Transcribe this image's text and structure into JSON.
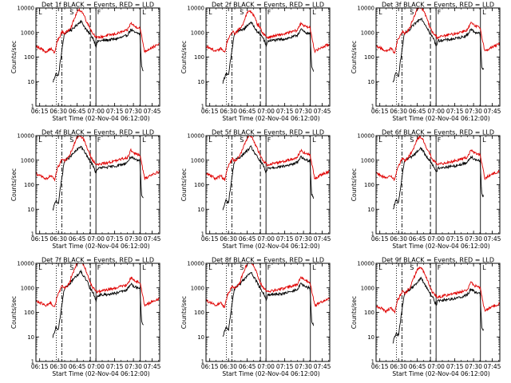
{
  "figure": {
    "panel_titles": [
      "Det 1f BLACK = Events, RED = LLD",
      "Det 2f BLACK = Events, RED = LLD",
      "Det 3f BLACK = Events, RED = LLD",
      "Det 4f BLACK = Events, RED = LLD",
      "Det 5f BLACK = Events, RED = LLD",
      "Det 6f BLACK = Events, RED = LLD",
      "Det 7f BLACK = Events, RED = LLD",
      "Det 8f BLACK = Events, RED = LLD",
      "Det 9f BLACK = Events, RED = LLD"
    ],
    "xlabel": "Start Time (02-Nov-04 06:12:00)",
    "ylabel": "Counts/sec",
    "x_ticks": [
      "06:15",
      "06:30",
      "06:45",
      "07:00",
      "07:15",
      "07:30",
      "07:45"
    ],
    "y_ticks": [
      "1",
      "10",
      "100",
      "1000",
      "10000"
    ],
    "markers": [
      "L",
      "S",
      "F",
      "L"
    ],
    "colors": {
      "events": "#000000",
      "lld": "#e00000"
    }
  },
  "chart_data": {
    "type": "line",
    "layout": "3x3 grid of log-scale time series",
    "x_unit": "minutes since 06:12:00",
    "xlim": [
      0,
      99
    ],
    "ylim": [
      1,
      10000
    ],
    "y_scale": "log",
    "x_tick_values": [
      3,
      18,
      33,
      48,
      63,
      78,
      93
    ],
    "vertical_lines": [
      {
        "x": 16.3,
        "style": "dotted"
      },
      {
        "x": 20.7,
        "style": "dash-dot"
      },
      {
        "x": 43.5,
        "style": "dashed"
      },
      {
        "x": 48.0,
        "style": "solid"
      },
      {
        "x": 83.5,
        "style": "solid"
      }
    ],
    "marker_positions": [
      {
        "label": "L",
        "x": 2
      },
      {
        "label": "S",
        "x": 27
      },
      {
        "label": "F",
        "x": 49
      },
      {
        "label": "L",
        "x": 85
      }
    ],
    "series": [
      {
        "name": "BLACK = Events",
        "x": [
          13.5,
          16,
          18,
          19.5,
          21,
          22.5,
          24,
          28,
          36,
          40,
          43,
          46,
          48,
          49.5,
          52,
          58,
          64,
          68,
          70,
          73,
          76,
          79,
          81,
          83.2,
          84.5,
          86
        ],
        "y": [
          8,
          20,
          15,
          60,
          200,
          700,
          900,
          1200,
          3000,
          1400,
          800,
          500,
          250,
          400,
          420,
          450,
          500,
          560,
          600,
          700,
          1200,
          900,
          850,
          800,
          35,
          25
        ]
      },
      {
        "name": "RED = LLD",
        "x": [
          0,
          4,
          8,
          12,
          15,
          17,
          19,
          21,
          23,
          25,
          27,
          29,
          31,
          33,
          35,
          37,
          39,
          41,
          43,
          45,
          47,
          49,
          52,
          55,
          58,
          61,
          64,
          67,
          70,
          73,
          76,
          79,
          81,
          83.2,
          87,
          91,
          95,
          99
        ],
        "y": [
          250,
          200,
          150,
          200,
          130,
          400,
          600,
          1000,
          800,
          1000,
          1300,
          2200,
          4000,
          7000,
          8500,
          7000,
          4500,
          2500,
          1500,
          900,
          700,
          550,
          600,
          650,
          700,
          750,
          800,
          900,
          1000,
          1100,
          2200,
          1600,
          1500,
          1400,
          150,
          200,
          250,
          300
        ]
      }
    ]
  }
}
